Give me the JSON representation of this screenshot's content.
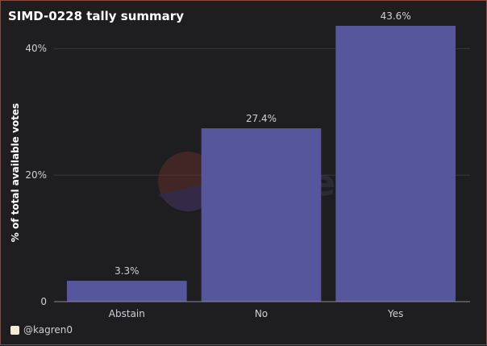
{
  "title": "SIMD-0228 tally summary",
  "footer": {
    "handle": "@kagren0"
  },
  "watermark": "Dune",
  "colors": {
    "bar": "#55569c",
    "background": "#1e1e20",
    "grid": "#3a3a40",
    "text": "#cfcfd4"
  },
  "chart_data": {
    "type": "bar",
    "categories": [
      "Abstain",
      "No",
      "Yes"
    ],
    "values": [
      3.3,
      27.4,
      43.6
    ],
    "value_labels": [
      "3.3%",
      "27.4%",
      "43.6%"
    ],
    "ylabel": "% of total available votes",
    "xlabel": "",
    "ylim": [
      0,
      45
    ],
    "yticks": [
      0,
      20,
      40
    ],
    "ytick_labels": [
      "0",
      "20%",
      "40%"
    ],
    "grid": true
  }
}
